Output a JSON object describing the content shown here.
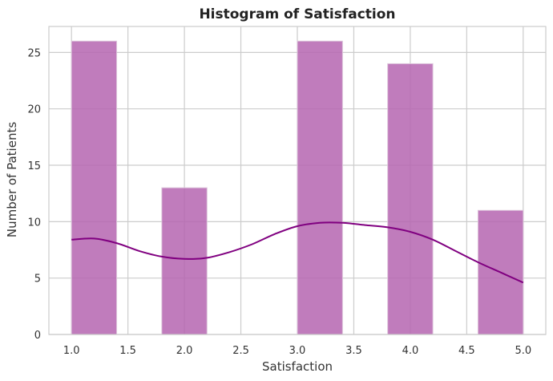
{
  "chart_data": {
    "type": "bar",
    "title": "Histogram of Satisfaction",
    "xlabel": "Satisfaction",
    "ylabel": "Number of Patients",
    "xlim": [
      0.8,
      5.2
    ],
    "ylim": [
      0,
      27.3
    ],
    "grid": true,
    "bins": [
      {
        "start": 1.0,
        "end": 1.4,
        "count": 26
      },
      {
        "start": 1.4,
        "end": 1.8,
        "count": 0
      },
      {
        "start": 1.8,
        "end": 2.2,
        "count": 13
      },
      {
        "start": 2.2,
        "end": 2.6,
        "count": 0
      },
      {
        "start": 2.6,
        "end": 3.0,
        "count": 0
      },
      {
        "start": 3.0,
        "end": 3.4,
        "count": 26
      },
      {
        "start": 3.4,
        "end": 3.8,
        "count": 0
      },
      {
        "start": 3.8,
        "end": 4.2,
        "count": 24
      },
      {
        "start": 4.2,
        "end": 4.6,
        "count": 0
      },
      {
        "start": 4.6,
        "end": 5.0,
        "count": 11
      }
    ],
    "kde": {
      "x": [
        1.0,
        1.2,
        1.4,
        1.6,
        1.8,
        2.0,
        2.2,
        2.4,
        2.6,
        2.8,
        3.0,
        3.2,
        3.4,
        3.6,
        3.8,
        4.0,
        4.2,
        4.4,
        4.6,
        4.8,
        5.0
      ],
      "y": [
        8.4,
        8.5,
        8.1,
        7.4,
        6.9,
        6.7,
        6.8,
        7.3,
        8.0,
        8.9,
        9.6,
        9.9,
        9.9,
        9.7,
        9.5,
        9.1,
        8.4,
        7.4,
        6.4,
        5.5,
        4.6
      ]
    },
    "xticks": [
      "1.0",
      "1.5",
      "2.0",
      "2.5",
      "3.0",
      "3.5",
      "4.0",
      "4.5",
      "5.0"
    ],
    "yticks": [
      "0",
      "5",
      "10",
      "15",
      "20",
      "25"
    ],
    "colors": {
      "bar": "#b565b0",
      "bar_edge": "#dcc3da",
      "kde": "#800080",
      "grid": "#cccccc",
      "frame": "#cccccc",
      "background": "#ffffff"
    }
  }
}
